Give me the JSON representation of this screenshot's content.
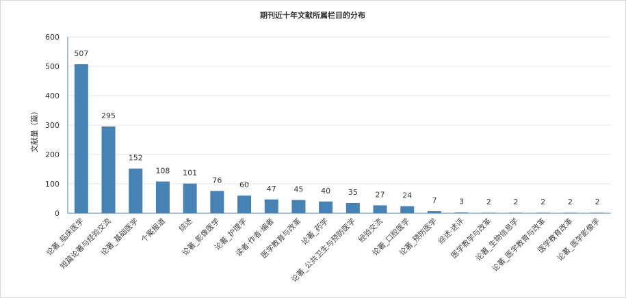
{
  "chart_data": {
    "type": "bar",
    "title": "期刊近十年文献所属栏目的分布",
    "ylabel": "文献量（篇）",
    "xlabel": "",
    "ylim": [
      0,
      600
    ],
    "yticks": [
      0,
      100,
      200,
      300,
      400,
      500,
      600
    ],
    "grid": true,
    "legend": "none",
    "bar_color": "#4682b4",
    "categories": [
      "论著_临床医学",
      "短篇论著与经验交流",
      "论著_基础医学",
      "个案报道",
      "综述",
      "论著_影像医学",
      "论著_护理学",
      "读者·作者·编者",
      "医学教育与改革",
      "论著_药学",
      "论著_公共卫生与预防医学",
      "经验交流",
      "论著_口腔医学",
      "论著_预防医学",
      "综述·述评",
      "医学教学与改革",
      "论著_生物信息学",
      "论著_医学教育与改革",
      "医学教育改革",
      "论著_医学影像学"
    ],
    "values": [
      507,
      295,
      152,
      108,
      101,
      76,
      60,
      47,
      45,
      40,
      35,
      27,
      24,
      7,
      3,
      2,
      2,
      2,
      2,
      2
    ]
  }
}
